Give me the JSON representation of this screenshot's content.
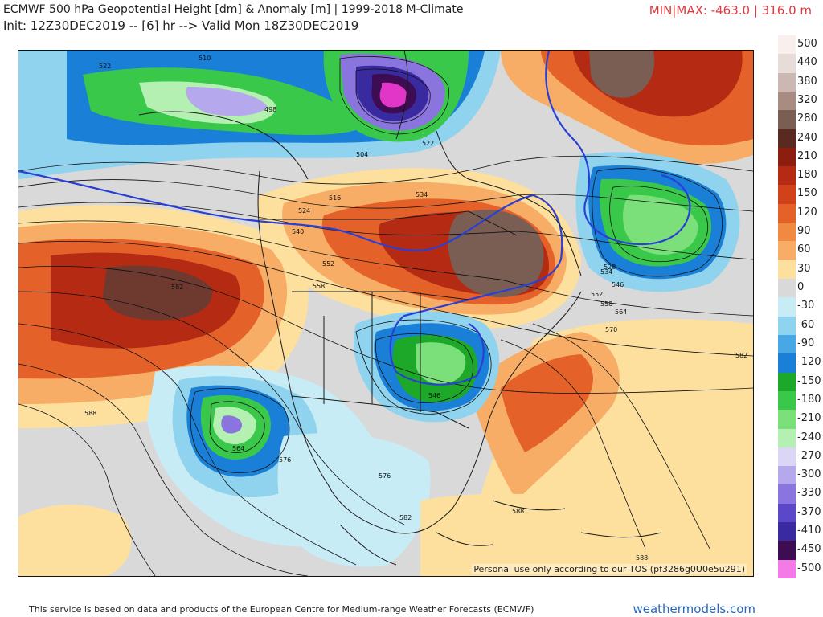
{
  "header": {
    "title_line1": "ECMWF 500 hPa Geopotential Height [dm] & Anomaly [m] | 1999-2018 M-Climate",
    "title_line2": "Init: 12Z30DEC2019 -- [6] hr --> Valid Mon 18Z30DEC2019",
    "minmax": "MIN|MAX: -463.0 | 316.0 m"
  },
  "map": {
    "tos_note": "Personal use only according to our TOS (pf3286g0U0e5u291)",
    "contour_labels": [
      "522",
      "510",
      "498",
      "504",
      "522",
      "516",
      "524",
      "540",
      "534",
      "582",
      "552",
      "558",
      "534",
      "528",
      "546",
      "552",
      "558",
      "564",
      "570",
      "582",
      "546",
      "588",
      "564",
      "576",
      "576",
      "582",
      "588",
      "588"
    ]
  },
  "colorbar": {
    "levels": [
      "500",
      "440",
      "380",
      "320",
      "280",
      "240",
      "210",
      "180",
      "150",
      "120",
      "90",
      "60",
      "30",
      "0",
      "-30",
      "-60",
      "-90",
      "-120",
      "-150",
      "-180",
      "-210",
      "-240",
      "-270",
      "-300",
      "-330",
      "-370",
      "-410",
      "-450",
      "-500"
    ],
    "colors": [
      "#f9f0ee",
      "#e8dcd8",
      "#cbb8b2",
      "#a88c82",
      "#7a5e54",
      "#5a2a20",
      "#8c1e10",
      "#b42a12",
      "#d2421a",
      "#e4622a",
      "#f08a42",
      "#f7ad66",
      "#fde09e",
      "#d9d9d9",
      "#c7ecf6",
      "#8fd3ee",
      "#4aa7e6",
      "#1a7fd6",
      "#1ea82a",
      "#3ac84a",
      "#7be07a",
      "#b4f0b2",
      "#dcd6f6",
      "#b6a8ec",
      "#8a74de",
      "#5a48c8",
      "#3a2aa0",
      "#3e0c52",
      "#f27be8"
    ]
  },
  "footer": {
    "attribution": "This service is based on data and products of the European Centre for Medium-range Weather Forecasts (ECMWF)",
    "site": "weathermodels.com"
  }
}
